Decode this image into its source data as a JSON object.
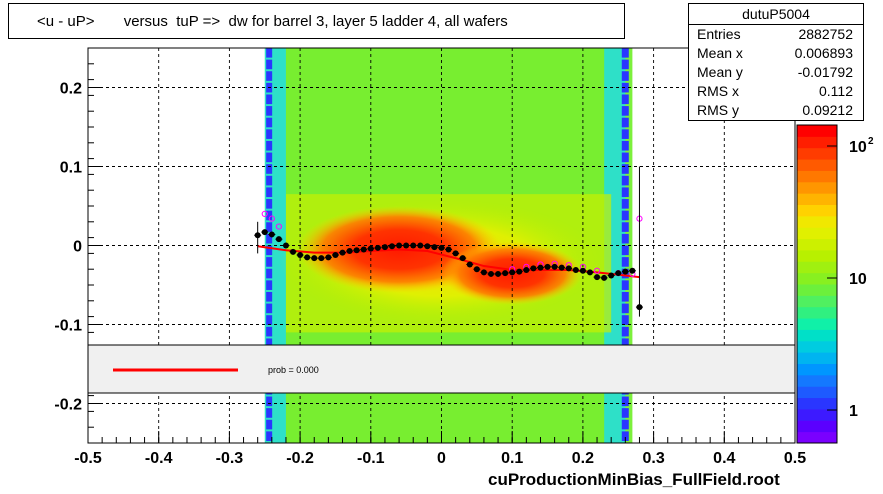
{
  "title": "<u - uP>       versus  tuP =>  dw for barrel 3, layer 5 ladder 4, all wafers",
  "stats": {
    "name": "dutuP5004",
    "rows": [
      {
        "key": "Entries",
        "value": "2882752"
      },
      {
        "key": "Mean x",
        "value": "0.006893"
      },
      {
        "key": "Mean y",
        "value": "-0.01792"
      },
      {
        "key": "RMS x",
        "value": "0.112"
      },
      {
        "key": "RMS y",
        "value": "0.09212"
      }
    ]
  },
  "legend": {
    "label": "prob = 0.000"
  },
  "footer": "cuProductionMinBias_FullField.root",
  "colors": {
    "fit_line": "#ff0000",
    "profile_markers": "#000000",
    "alt_markers": "#ff00ff",
    "legend_bg": "#f0f0f0"
  },
  "chart_data": {
    "type": "heatmap",
    "title": "<u - uP>       versus  tuP =>  dw for barrel 3, layer 5 ladder 4, all wafers",
    "xlim": [
      -0.5,
      0.5
    ],
    "ylim": [
      -0.25,
      0.25
    ],
    "x_ticks": [
      "-0.5",
      "-0.4",
      "-0.3",
      "-0.2",
      "-0.1",
      "0",
      "0.1",
      "0.2",
      "0.3",
      "0.4",
      "0.5"
    ],
    "y_ticks": [
      "-0.2",
      "-0.1",
      "0",
      "0.1",
      "0.2"
    ],
    "grid": true,
    "colorbar": {
      "scale": "log",
      "labels": [
        {
          "text": "1",
          "value": 1
        },
        {
          "text": "10",
          "value": 10
        },
        {
          "text": "10",
          "sup": "2",
          "value": 100
        }
      ]
    },
    "series": [
      {
        "type": "profile",
        "x": [
          -0.26,
          -0.25,
          -0.24,
          -0.23,
          -0.22,
          -0.21,
          -0.2,
          -0.19,
          -0.18,
          -0.17,
          -0.16,
          -0.15,
          -0.14,
          -0.13,
          -0.12,
          -0.11,
          -0.1,
          -0.09,
          -0.08,
          -0.07,
          -0.06,
          -0.05,
          -0.04,
          -0.03,
          -0.02,
          -0.01,
          0.0,
          0.01,
          0.02,
          0.03,
          0.04,
          0.05,
          0.06,
          0.07,
          0.08,
          0.09,
          0.1,
          0.11,
          0.12,
          0.13,
          0.14,
          0.15,
          0.16,
          0.17,
          0.18,
          0.19,
          0.2,
          0.21,
          0.22,
          0.23,
          0.24,
          0.25,
          0.26,
          0.27,
          0.28
        ],
        "y": [
          0.013,
          0.017,
          0.014,
          0.008,
          0.0,
          -0.008,
          -0.012,
          -0.015,
          -0.016,
          -0.016,
          -0.015,
          -0.012,
          -0.009,
          -0.007,
          -0.006,
          -0.005,
          -0.004,
          -0.003,
          -0.002,
          -0.001,
          0.0,
          0.0,
          0.0,
          0.0,
          -0.001,
          -0.002,
          -0.003,
          -0.005,
          -0.01,
          -0.016,
          -0.024,
          -0.03,
          -0.034,
          -0.036,
          -0.036,
          -0.035,
          -0.034,
          -0.033,
          -0.031,
          -0.029,
          -0.028,
          -0.027,
          -0.027,
          -0.028,
          -0.029,
          -0.031,
          -0.032,
          -0.034,
          -0.04,
          -0.041,
          -0.038,
          -0.035,
          -0.033,
          -0.032,
          -0.078
        ]
      },
      {
        "type": "profile-alt",
        "x": [
          -0.25,
          -0.24,
          -0.23,
          0.1,
          0.12,
          0.14,
          0.16,
          0.18,
          0.2,
          0.22,
          0.25,
          0.27,
          0.28
        ],
        "y": [
          0.04,
          0.034,
          0.024,
          -0.03,
          -0.027,
          -0.024,
          -0.023,
          -0.025,
          -0.027,
          -0.032,
          -0.035,
          -0.036,
          0.034
        ]
      },
      {
        "type": "fit",
        "x": [
          -0.26,
          -0.22,
          -0.18,
          -0.14,
          -0.1,
          -0.06,
          -0.02,
          0.02,
          0.06,
          0.1,
          0.14,
          0.18,
          0.22,
          0.26,
          0.28
        ],
        "y": [
          -0.001,
          -0.006,
          -0.009,
          -0.009,
          -0.007,
          -0.005,
          -0.007,
          -0.016,
          -0.026,
          -0.031,
          -0.031,
          -0.031,
          -0.034,
          -0.038,
          -0.04
        ]
      }
    ]
  }
}
